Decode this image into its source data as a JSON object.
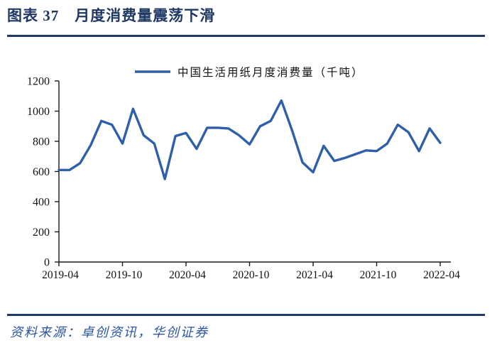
{
  "header": {
    "title": "图表 37　月度消费量震荡下滑"
  },
  "chart_data": {
    "type": "line",
    "legend": "中国生活用纸月度消费量（千吨）",
    "legend_position": "top",
    "grid": false,
    "categories": [
      "2019-04",
      "2019-05",
      "2019-06",
      "2019-07",
      "2019-08",
      "2019-09",
      "2019-10",
      "2019-11",
      "2019-12",
      "2020-01",
      "2020-02",
      "2020-03",
      "2020-04",
      "2020-05",
      "2020-06",
      "2020-07",
      "2020-08",
      "2020-09",
      "2020-10",
      "2020-11",
      "2020-12",
      "2021-01",
      "2021-02",
      "2021-03",
      "2021-04",
      "2021-05",
      "2021-06",
      "2021-07",
      "2021-08",
      "2021-09",
      "2021-10",
      "2021-11",
      "2021-12",
      "2022-01",
      "2022-02",
      "2022-03",
      "2022-04"
    ],
    "values": [
      610,
      610,
      655,
      775,
      935,
      910,
      785,
      1015,
      840,
      785,
      550,
      835,
      855,
      750,
      890,
      890,
      885,
      840,
      780,
      900,
      935,
      1070,
      875,
      660,
      595,
      770,
      670,
      690,
      715,
      740,
      735,
      785,
      910,
      860,
      735,
      885,
      790
    ],
    "ylim": [
      0,
      1200
    ],
    "ytick_step": 200,
    "ytick_labels": [
      "0",
      "200",
      "400",
      "600",
      "800",
      "1000",
      "1200"
    ],
    "xtick_every": 6,
    "xtick_labels": [
      "2019-04",
      "2019-10",
      "2020-04",
      "2020-10",
      "2021-04",
      "2021-10",
      "2022-04"
    ],
    "xlabel": "",
    "ylabel": "",
    "line_color": "#2E5FA8"
  },
  "footer": {
    "source": "资料来源：卓创资讯，华创证券"
  },
  "colors": {
    "title_navy": "#1F3864",
    "line_blue": "#2E5FA8",
    "source_blue": "#2A55A5",
    "axis_black": "#1a1a1a"
  }
}
